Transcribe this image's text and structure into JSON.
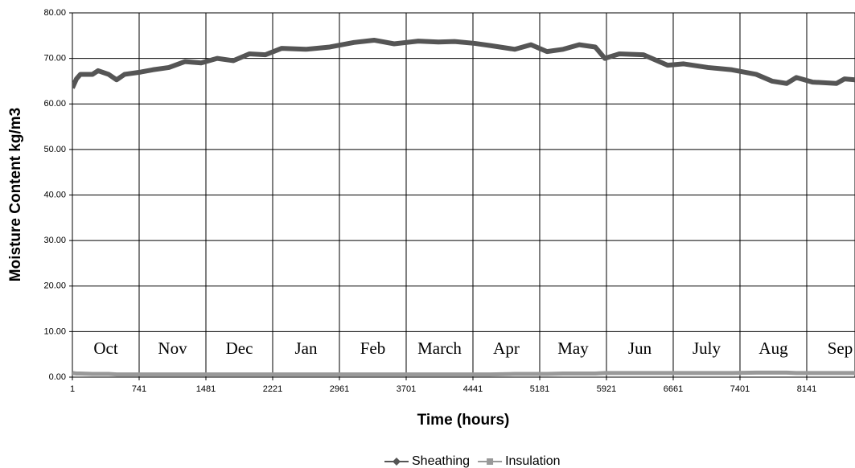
{
  "chart_data": {
    "type": "line",
    "x_label": "Time (hours)",
    "y_label": "Moisture Content kg/m3",
    "month_labels": [
      "Oct",
      "Nov",
      "Dec",
      "Jan",
      "Feb",
      "March",
      "Apr",
      "May",
      "Jun",
      "July",
      "Aug",
      "Sep"
    ],
    "x": [
      1,
      46,
      90,
      224,
      286,
      402,
      491,
      580,
      759,
      893,
      1071,
      1250,
      1428,
      1606,
      1784,
      1963,
      2141,
      2319,
      2587,
      2854,
      3122,
      3345,
      3568,
      3835,
      4058,
      4237,
      4460,
      4638,
      4906,
      5084,
      5262,
      5441,
      5619,
      5797,
      5903,
      6064,
      6331,
      6599,
      6777,
      7045,
      7312,
      7580,
      7758,
      7918,
      8025,
      8204,
      8471,
      8560,
      8676
    ],
    "series": [
      {
        "name": "Sheathing",
        "color": "#555555",
        "marker": "diamond",
        "values": [
          63.5,
          65.5,
          66.5,
          66.5,
          67.3,
          66.5,
          65.3,
          66.5,
          67,
          67.5,
          68,
          69.3,
          69,
          70,
          69.5,
          71,
          70.8,
          72.2,
          72,
          72.5,
          73.5,
          74,
          73.2,
          73.8,
          73.6,
          73.7,
          73.3,
          72.8,
          72,
          73,
          71.5,
          72,
          73,
          72.5,
          70,
          71,
          70.8,
          68.5,
          68.8,
          68,
          67.5,
          66.5,
          65,
          64.5,
          65.8,
          64.8,
          64.5,
          65.5,
          65.3
        ]
      },
      {
        "name": "Insulation",
        "color": "#999999",
        "marker": "square",
        "values": [
          0.9,
          0.8,
          0.8,
          0.7,
          0.7,
          0.7,
          0.6,
          0.6,
          0.6,
          0.6,
          0.6,
          0.6,
          0.6,
          0.6,
          0.6,
          0.6,
          0.6,
          0.6,
          0.6,
          0.6,
          0.6,
          0.6,
          0.6,
          0.6,
          0.6,
          0.6,
          0.6,
          0.6,
          0.7,
          0.7,
          0.7,
          0.8,
          0.8,
          0.8,
          0.9,
          0.9,
          0.9,
          0.9,
          0.9,
          0.9,
          0.9,
          1.0,
          1.0,
          1.0,
          0.9,
          0.9,
          0.9,
          0.9,
          0.9
        ]
      }
    ],
    "xlim": [
      1,
      8676
    ],
    "ylim": [
      0,
      80
    ],
    "xticks": [
      1,
      741,
      1481,
      2221,
      2961,
      3701,
      4441,
      5181,
      5921,
      6661,
      7401,
      8141
    ],
    "yticks": [
      {
        "value": 0,
        "label": "0.00"
      },
      {
        "value": 10,
        "label": "10.00"
      },
      {
        "value": 20,
        "label": "20.00"
      },
      {
        "value": 30,
        "label": "30.00"
      },
      {
        "value": 40,
        "label": "40.00"
      },
      {
        "value": 50,
        "label": "50.00"
      },
      {
        "value": 60,
        "label": "60.00"
      },
      {
        "value": 70,
        "label": "70.00"
      },
      {
        "value": 80,
        "label": "80.00"
      }
    ],
    "grid": true,
    "legend": "bottom"
  }
}
